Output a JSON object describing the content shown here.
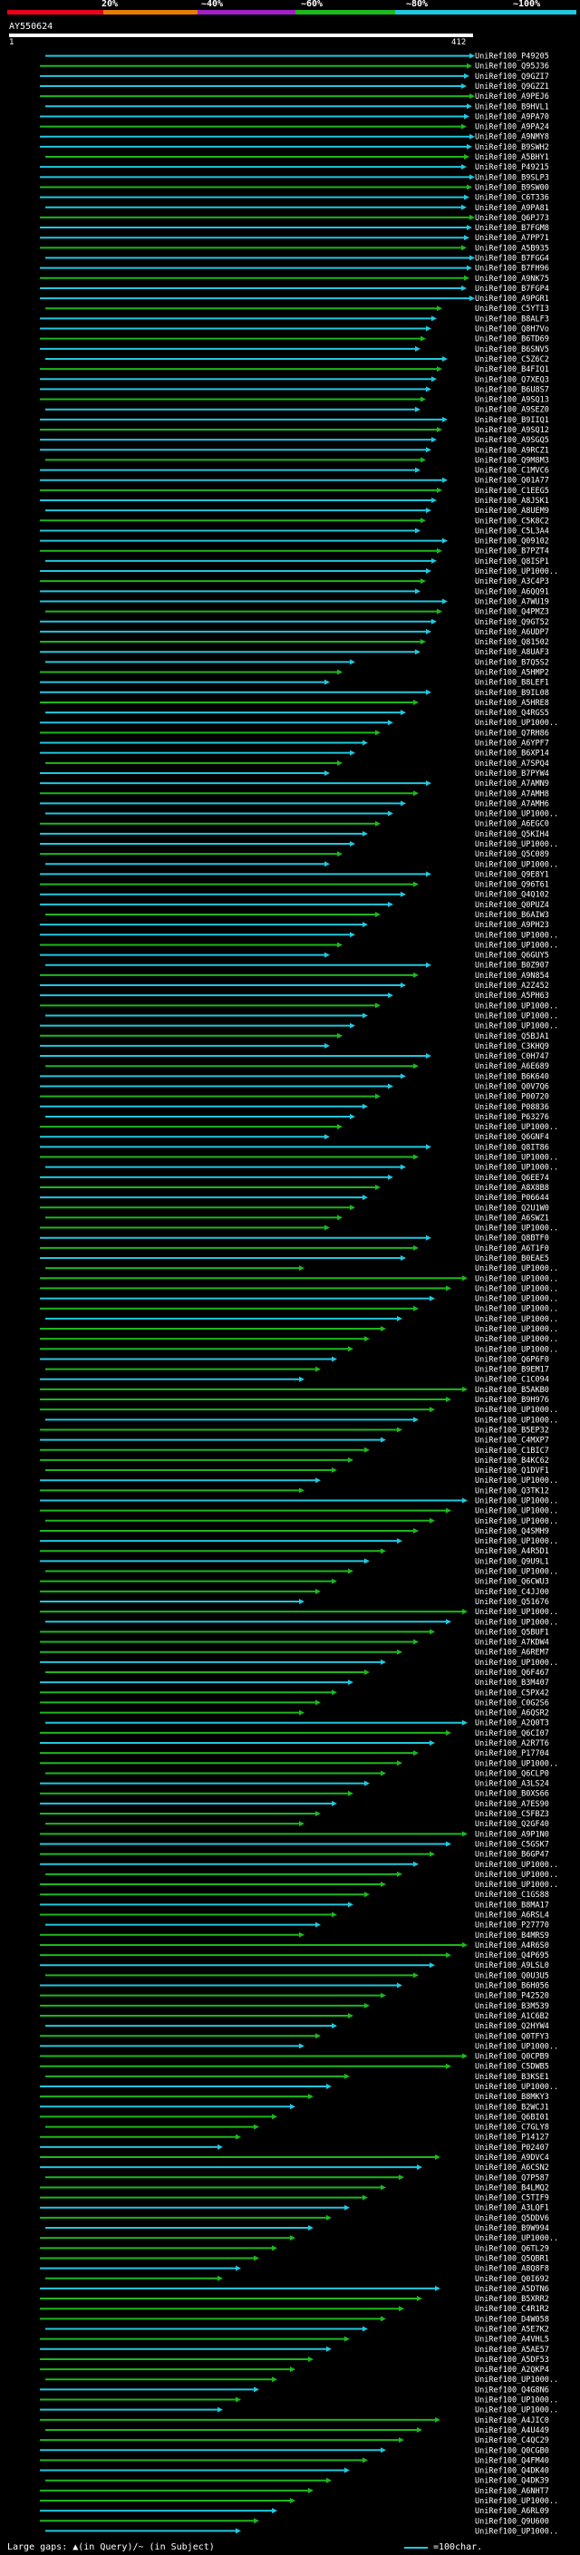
{
  "query": {
    "id": "AY550624",
    "start": "1",
    "end": "412"
  },
  "scale": {
    "marks": [
      "20%",
      "~40%",
      "~60%",
      "~80%",
      "~100%"
    ],
    "colors": [
      "#e8001c",
      "#e87c00",
      "#a020c8",
      "#1cb81c",
      "#20c8e0"
    ]
  },
  "legend": {
    "gaps_label": "Large gaps: ▲(in Query)/~ (in Subject)",
    "char_label": "=100char."
  },
  "hits": [
    "UniRef100_P49205",
    "UniRef100_Q95J36",
    "UniRef100_Q9GZI7",
    "UniRef100_Q9GZZ1",
    "UniRef100_A9PEJ6",
    "UniRef100_B9HVL1",
    "UniRef100_A9PA70",
    "UniRef100_A9PA24",
    "UniRef100_A9NMY8",
    "UniRef100_B9SWH2",
    "UniRef100_A5BHY1",
    "UniRef100_P49215",
    "UniRef100_B9SLP3",
    "UniRef100_B9SW00",
    "UniRef100_C6T336",
    "UniRef100_A9PA81",
    "UniRef100_Q6PJ73",
    "UniRef100_B7FGM8",
    "UniRef100_A7PP71",
    "UniRef100_A5B935",
    "UniRef100_B7FGG4",
    "UniRef100_B7FH96",
    "UniRef100_A9NK75",
    "UniRef100_B7FGP4",
    "UniRef100_A9PGR1",
    "UniRef100_C5YTI3",
    "UniRef100_B8ALF3",
    "UniRef100_Q8H7Vo",
    "UniRef100_B6TD69",
    "UniRef100_B6SNV5",
    "UniRef100_C5Z6C2",
    "UniRef100_B4FIQ1",
    "UniRef100_Q7XEQ3",
    "UniRef100_B6U8S7",
    "UniRef100_A9SQ13",
    "UniRef100_A9SEZ0",
    "UniRef100_B9IIQ1",
    "UniRef100_A9SQ12",
    "UniRef100_A9SGQ5",
    "UniRef100_A9RCZ1",
    "UniRef100_Q9M8M3",
    "UniRef100_C1MVC6",
    "UniRef100_Q01A77",
    "UniRef100_C1EEG5",
    "UniRef100_A8JSK1",
    "UniRef100_A8UEM9",
    "UniRef100_C5K8C2",
    "UniRef100_C5L3A4",
    "UniRef100_Q09102",
    "UniRef100_B7PZT4",
    "UniRef100_Q8ISP1",
    "UniRef100_UP1000..",
    "UniRef100_A3C4P3",
    "UniRef100_A6QQ91",
    "UniRef100_A7WU19",
    "UniRef100_Q4PMZ3",
    "UniRef100_Q9GT52",
    "UniRef100_A6UDP7",
    "UniRef100_Q81502",
    "UniRef100_A8UAF3",
    "UniRef100_B7Q5S2",
    "UniRef100_A5HMP2",
    "UniRef100_B8LEF1",
    "UniRef100_B9IL08",
    "UniRef100_A5HRE8",
    "UniRef100_Q4RGS5",
    "UniRef100_UP1000..",
    "UniRef100_Q7RH86",
    "UniRef100_A6YPF7",
    "UniRef100_B6XP14",
    "UniRef100_A7SPQ4",
    "UniRef100_B7PYW4",
    "UniRef100_A7AMN9",
    "UniRef100_A7AMH8",
    "UniRef100_A7AMH6",
    "UniRef100_UP1000..",
    "UniRef100_A6EGC0",
    "UniRef100_Q5KIH4",
    "UniRef100_UP1000..",
    "UniRef100_Q5C089",
    "UniRef100_UP1000..",
    "UniRef100_Q9E8Y1",
    "UniRef100_Q96T61",
    "UniRef100_Q4Q102",
    "UniRef100_Q0PUZ4",
    "UniRef100_B6AIW3",
    "UniRef100_A9PH23",
    "UniRef100_UP1000..",
    "UniRef100_UP1000..",
    "UniRef100_Q6GUY5",
    "UniRef100_B0Z907",
    "UniRef100_A9N854",
    "UniRef100_A2Z452",
    "UniRef100_A5PH63",
    "UniRef100_UP1000..",
    "UniRef100_UP1000..",
    "UniRef100_UP1000..",
    "UniRef100_Q5BJA1",
    "UniRef100_C3KHQ9",
    "UniRef100_C0H747",
    "UniRef100_A6E689",
    "UniRef100_B6K640",
    "UniRef100_Q0V7Q6",
    "UniRef100_P00720",
    "UniRef100_P08836",
    "UniRef100_P63276",
    "UniRef100_UP1000..",
    "UniRef100_Q6GNF4",
    "UniRef100_Q8IT86",
    "UniRef100_UP1000..",
    "UniRef100_UP1000..",
    "UniRef100_Q6EE74",
    "UniRef100_A8X8B8",
    "UniRef100_P06644",
    "UniRef100_Q2U1W0",
    "UniRef100_A6SWZ1",
    "UniRef100_UP1000..",
    "UniRef100_Q8BTF0",
    "UniRef100_A6T1F0",
    "UniRef100_B0EAE5",
    "UniRef100_UP1000..",
    "UniRef100_UP1000..",
    "UniRef100_UP1000..",
    "UniRef100_UP1000..",
    "UniRef100_UP1000..",
    "UniRef100_UP1000..",
    "UniRef100_UP1000..",
    "UniRef100_UP1000..",
    "UniRef100_UP1000..",
    "UniRef100_Q6P6F0",
    "UniRef100_B9EM17",
    "UniRef100_C1C094",
    "UniRef100_B5AKB0",
    "UniRef100_B9H976",
    "UniRef100_UP1000..",
    "UniRef100_UP1000..",
    "UniRef100_B5EP32",
    "UniRef100_C4MXP7",
    "UniRef100_C1BIC7",
    "UniRef100_B4KC62",
    "UniRef100_Q1DVF1",
    "UniRef100_UP1000..",
    "UniRef100_Q3TK12",
    "UniRef100_UP1000..",
    "UniRef100_UP1000..",
    "UniRef100_UP1000..",
    "UniRef100_Q4SMH9",
    "UniRef100_UP1000..",
    "UniRef100_A4R5D1",
    "UniRef100_Q9U9L1",
    "UniRef100_UP1000..",
    "UniRef100_Q6CWU3",
    "UniRef100_C4JJ00",
    "UniRef100_Q51676",
    "UniRef100_UP1000..",
    "UniRef100_UP1000..",
    "UniRef100_Q5BUF1",
    "UniRef100_A7KDW4",
    "UniRef100_A6REM7",
    "UniRef100_UP1000..",
    "UniRef100_Q6F467",
    "UniRef100_B3M407",
    "UniRef100_C5PX42",
    "UniRef100_C0G2S6",
    "UniRef100_A6QSR2",
    "UniRef100_A2Q0T3",
    "UniRef100_Q6CI07",
    "UniRef100_A2R7T6",
    "UniRef100_P17704",
    "UniRef100_UP1000..",
    "UniRef100_Q6CLP0",
    "UniRef100_A3LS24",
    "UniRef100_B0XS66",
    "UniRef100_A7ES90",
    "UniRef100_C5FBZ3",
    "UniRef100_Q2GF40",
    "UniRef100_A9P1N0",
    "UniRef100_C5GSK7",
    "UniRef100_B6GP47",
    "UniRef100_UP1000..",
    "UniRef100_UP1000..",
    "UniRef100_UP1000..",
    "UniRef100_C1GS88",
    "UniRef100_B8MA17",
    "UniRef100_A6RSL4",
    "UniRef100_P27770",
    "UniRef100_B4MRS9",
    "UniRef100_A4R6S0",
    "UniRef100_Q4P695",
    "UniRef100_A9LSL0",
    "UniRef100_Q0U3U5",
    "UniRef100_B6H056",
    "UniRef100_P42520",
    "UniRef100_B3M539",
    "UniRef100_A1C6B2",
    "UniRef100_Q2HYW4",
    "UniRef100_Q0TFY3",
    "UniRef100_UP1000..",
    "UniRef100_Q0CPB9",
    "UniRef100_C5DWB5",
    "UniRef100_B3KSE1",
    "UniRef100_UP1000..",
    "UniRef100_B8MKY3",
    "UniRef100_B2WCJ1",
    "UniRef100_Q6BI01",
    "UniRef100_C7GLY8",
    "UniRef100_P14127",
    "UniRef100_P02407",
    "UniRef100_A9DVC4",
    "UniRef100_A6CSN2",
    "UniRef100_Q7P587",
    "UniRef100_B4LMQ2",
    "UniRef100_C5TIF9",
    "UniRef100_A3LQF1",
    "UniRef100_Q5DDV6",
    "UniRef100_B9W994",
    "UniRef100_UP1000..",
    "UniRef100_Q6TL29",
    "UniRef100_Q5QBR1",
    "UniRef100_A8Q8F8",
    "UniRef100_Q0I692",
    "UniRef100_A5DTN6",
    "UniRef100_B5XRR2",
    "UniRef100_C4R1R2",
    "UniRef100_D4W058",
    "UniRef100_A5E7K2",
    "UniRef100_A4VHL5",
    "UniRef100_A5AE57",
    "UniRef100_A5DF53",
    "UniRef100_A2QKP4",
    "UniRef100_UP1000..",
    "UniRef100_Q4G8N6",
    "UniRef100_UP1000..",
    "UniRef100_UP1000..",
    "UniRef100_A4JIC0",
    "UniRef100_A4U449",
    "UniRef100_C4QC29",
    "UniRef100_Q0CGB0",
    "UniRef100_Q4FM40",
    "UniRef100_Q4DK40",
    "UniRef100_Q4DK39",
    "UniRef100_A6NHT7",
    "UniRef100_UP1000..",
    "UniRef100_A6RL09",
    "UniRef100_Q9U600",
    "UniRef100_UP1000.."
  ],
  "hit_colors": [
    "#20c8e0",
    "#1cb81c"
  ]
}
